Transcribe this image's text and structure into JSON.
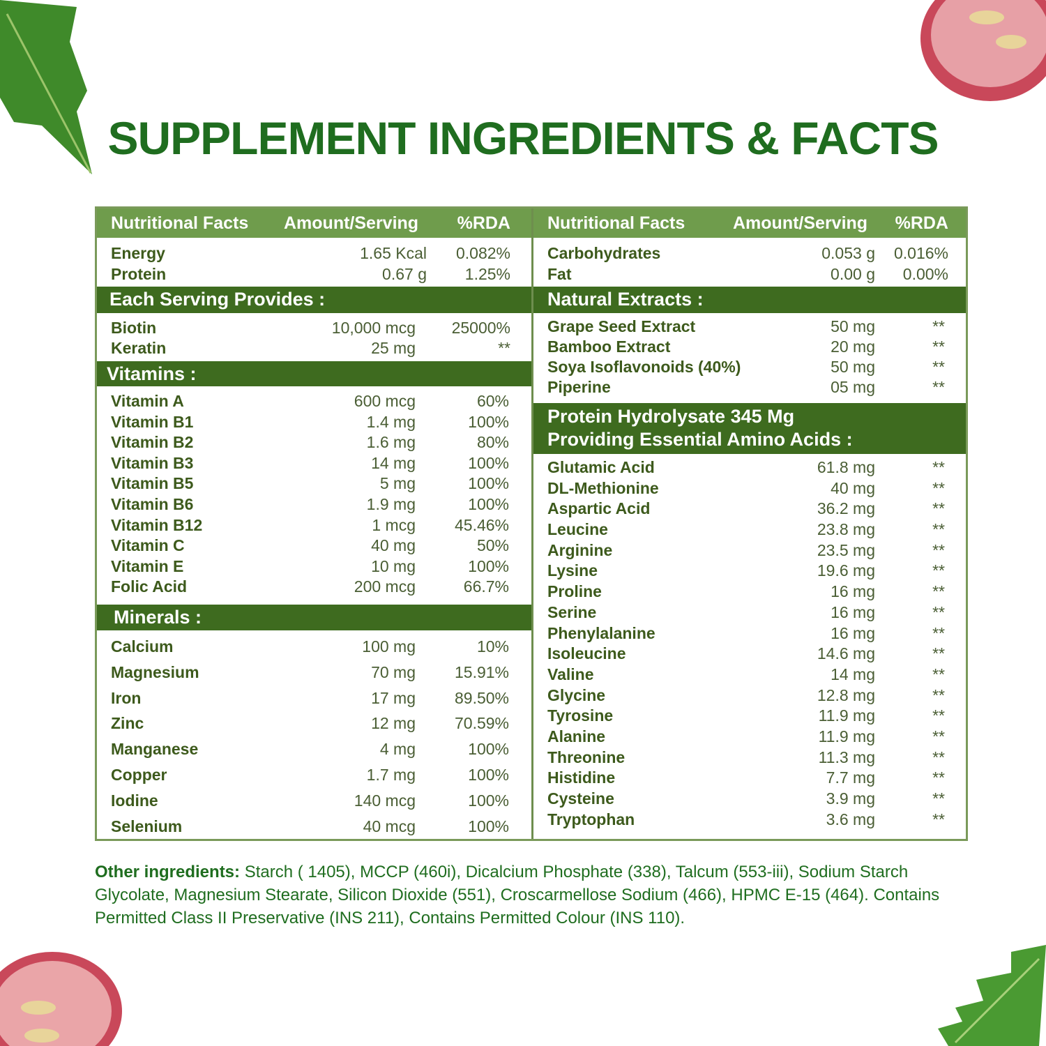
{
  "title": "SUPPLEMENT INGREDIENTS & FACTS",
  "colors": {
    "title": "#1f6d1f",
    "header": "#6f9c4c",
    "section": "#3e6b1f",
    "text": "#3d5a1c"
  },
  "headers": {
    "name": "Nutritional Facts",
    "amount": "Amount/Serving",
    "rda": "%RDA"
  },
  "left": {
    "basic": [
      {
        "n": "Energy",
        "a": "1.65 Kcal",
        "r": "0.082%"
      },
      {
        "n": "Protein",
        "a": "0.67 g",
        "r": "1.25%"
      }
    ],
    "serving_title": "Each Serving Provides :",
    "serving": [
      {
        "n": "Biotin",
        "a": "10,000 mcg",
        "r": "25000%"
      },
      {
        "n": "Keratin",
        "a": "25 mg",
        "r": "**"
      }
    ],
    "vitamins_title": "Vitamins :",
    "vitamins": [
      {
        "n": "Vitamin A",
        "a": "600 mcg",
        "r": "60%"
      },
      {
        "n": "Vitamin B1",
        "a": "1.4 mg",
        "r": "100%"
      },
      {
        "n": "Vitamin B2",
        "a": "1.6 mg",
        "r": "80%"
      },
      {
        "n": "Vitamin B3",
        "a": "14 mg",
        "r": "100%"
      },
      {
        "n": "Vitamin B5",
        "a": "5 mg",
        "r": "100%"
      },
      {
        "n": "Vitamin B6",
        "a": "1.9 mg",
        "r": "100%"
      },
      {
        "n": "Vitamin B12",
        "a": "1 mcg",
        "r": "45.46%"
      },
      {
        "n": "Vitamin C",
        "a": "40 mg",
        "r": "50%"
      },
      {
        "n": "Vitamin E",
        "a": "10 mg",
        "r": "100%"
      },
      {
        "n": "Folic Acid",
        "a": "200 mcg",
        "r": "66.7%"
      }
    ],
    "minerals_title": "Minerals :",
    "minerals": [
      {
        "n": "Calcium",
        "a": "100 mg",
        "r": "10%"
      },
      {
        "n": "Magnesium",
        "a": "70 mg",
        "r": "15.91%"
      },
      {
        "n": "Iron",
        "a": "17 mg",
        "r": "89.50%"
      },
      {
        "n": "Zinc",
        "a": "12 mg",
        "r": "70.59%"
      },
      {
        "n": "Manganese",
        "a": "4 mg",
        "r": "100%"
      },
      {
        "n": "Copper",
        "a": "1.7 mg",
        "r": "100%"
      },
      {
        "n": "Iodine",
        "a": "140 mcg",
        "r": "100%"
      },
      {
        "n": "Selenium",
        "a": "40 mcg",
        "r": "100%"
      }
    ]
  },
  "right": {
    "basic": [
      {
        "n": "Carbohydrates",
        "a": "0.053 g",
        "r": "0.016%"
      },
      {
        "n": "Fat",
        "a": "0.00 g",
        "r": "0.00%"
      }
    ],
    "extracts_title": "Natural Extracts :",
    "extracts": [
      {
        "n": "Grape Seed Extract",
        "a": "50 mg",
        "r": "**"
      },
      {
        "n": "Bamboo Extract",
        "a": "20 mg",
        "r": "**"
      },
      {
        "n": "Soya Isoflavonoids (40%)",
        "a": "50 mg",
        "r": "**"
      },
      {
        "n": "Piperine",
        "a": "05 mg",
        "r": "**"
      }
    ],
    "amino_title_1": "Protein Hydrolysate 345 Mg",
    "amino_title_2": "Providing Essential Amino Acids :",
    "amino": [
      {
        "n": "Glutamic Acid",
        "a": "61.8 mg",
        "r": "**"
      },
      {
        "n": "DL-Methionine",
        "a": "40 mg",
        "r": "**"
      },
      {
        "n": "Aspartic Acid",
        "a": "36.2 mg",
        "r": "**"
      },
      {
        "n": "Leucine",
        "a": "23.8 mg",
        "r": "**"
      },
      {
        "n": "Arginine",
        "a": "23.5 mg",
        "r": "**"
      },
      {
        "n": "Lysine",
        "a": "19.6 mg",
        "r": "**"
      },
      {
        "n": "Proline",
        "a": "16 mg",
        "r": "**"
      },
      {
        "n": "Serine",
        "a": "16 mg",
        "r": "**"
      },
      {
        "n": "Phenylalanine",
        "a": "16 mg",
        "r": "**"
      },
      {
        "n": "Isoleucine",
        "a": "14.6 mg",
        "r": "**"
      },
      {
        "n": "Valine",
        "a": "14 mg",
        "r": "**"
      },
      {
        "n": "Glycine",
        "a": "12.8 mg",
        "r": "**"
      },
      {
        "n": "Tyrosine",
        "a": "11.9 mg",
        "r": "**"
      },
      {
        "n": "Alanine",
        "a": "11.9 mg",
        "r": "**"
      },
      {
        "n": "Threonine",
        "a": "11.3 mg",
        "r": "**"
      },
      {
        "n": "Histidine",
        "a": "7.7 mg",
        "r": "**"
      },
      {
        "n": "Cysteine",
        "a": "3.9 mg",
        "r": "**"
      },
      {
        "n": "Tryptophan",
        "a": "3.6 mg",
        "r": "**"
      }
    ]
  },
  "other": {
    "label": "Other ingredients:",
    "text": " Starch ( 1405), MCCP (460i), Dicalcium Phosphate (338), Talcum (553-iii), Sodium Starch Glycolate, Magnesium Stearate, Silicon Dioxide (551), Croscarmellose Sodium (466), HPMC E-15 (464). Contains Permitted Class II Preservative (INS 211), Contains Permitted Colour (INS 110)."
  }
}
